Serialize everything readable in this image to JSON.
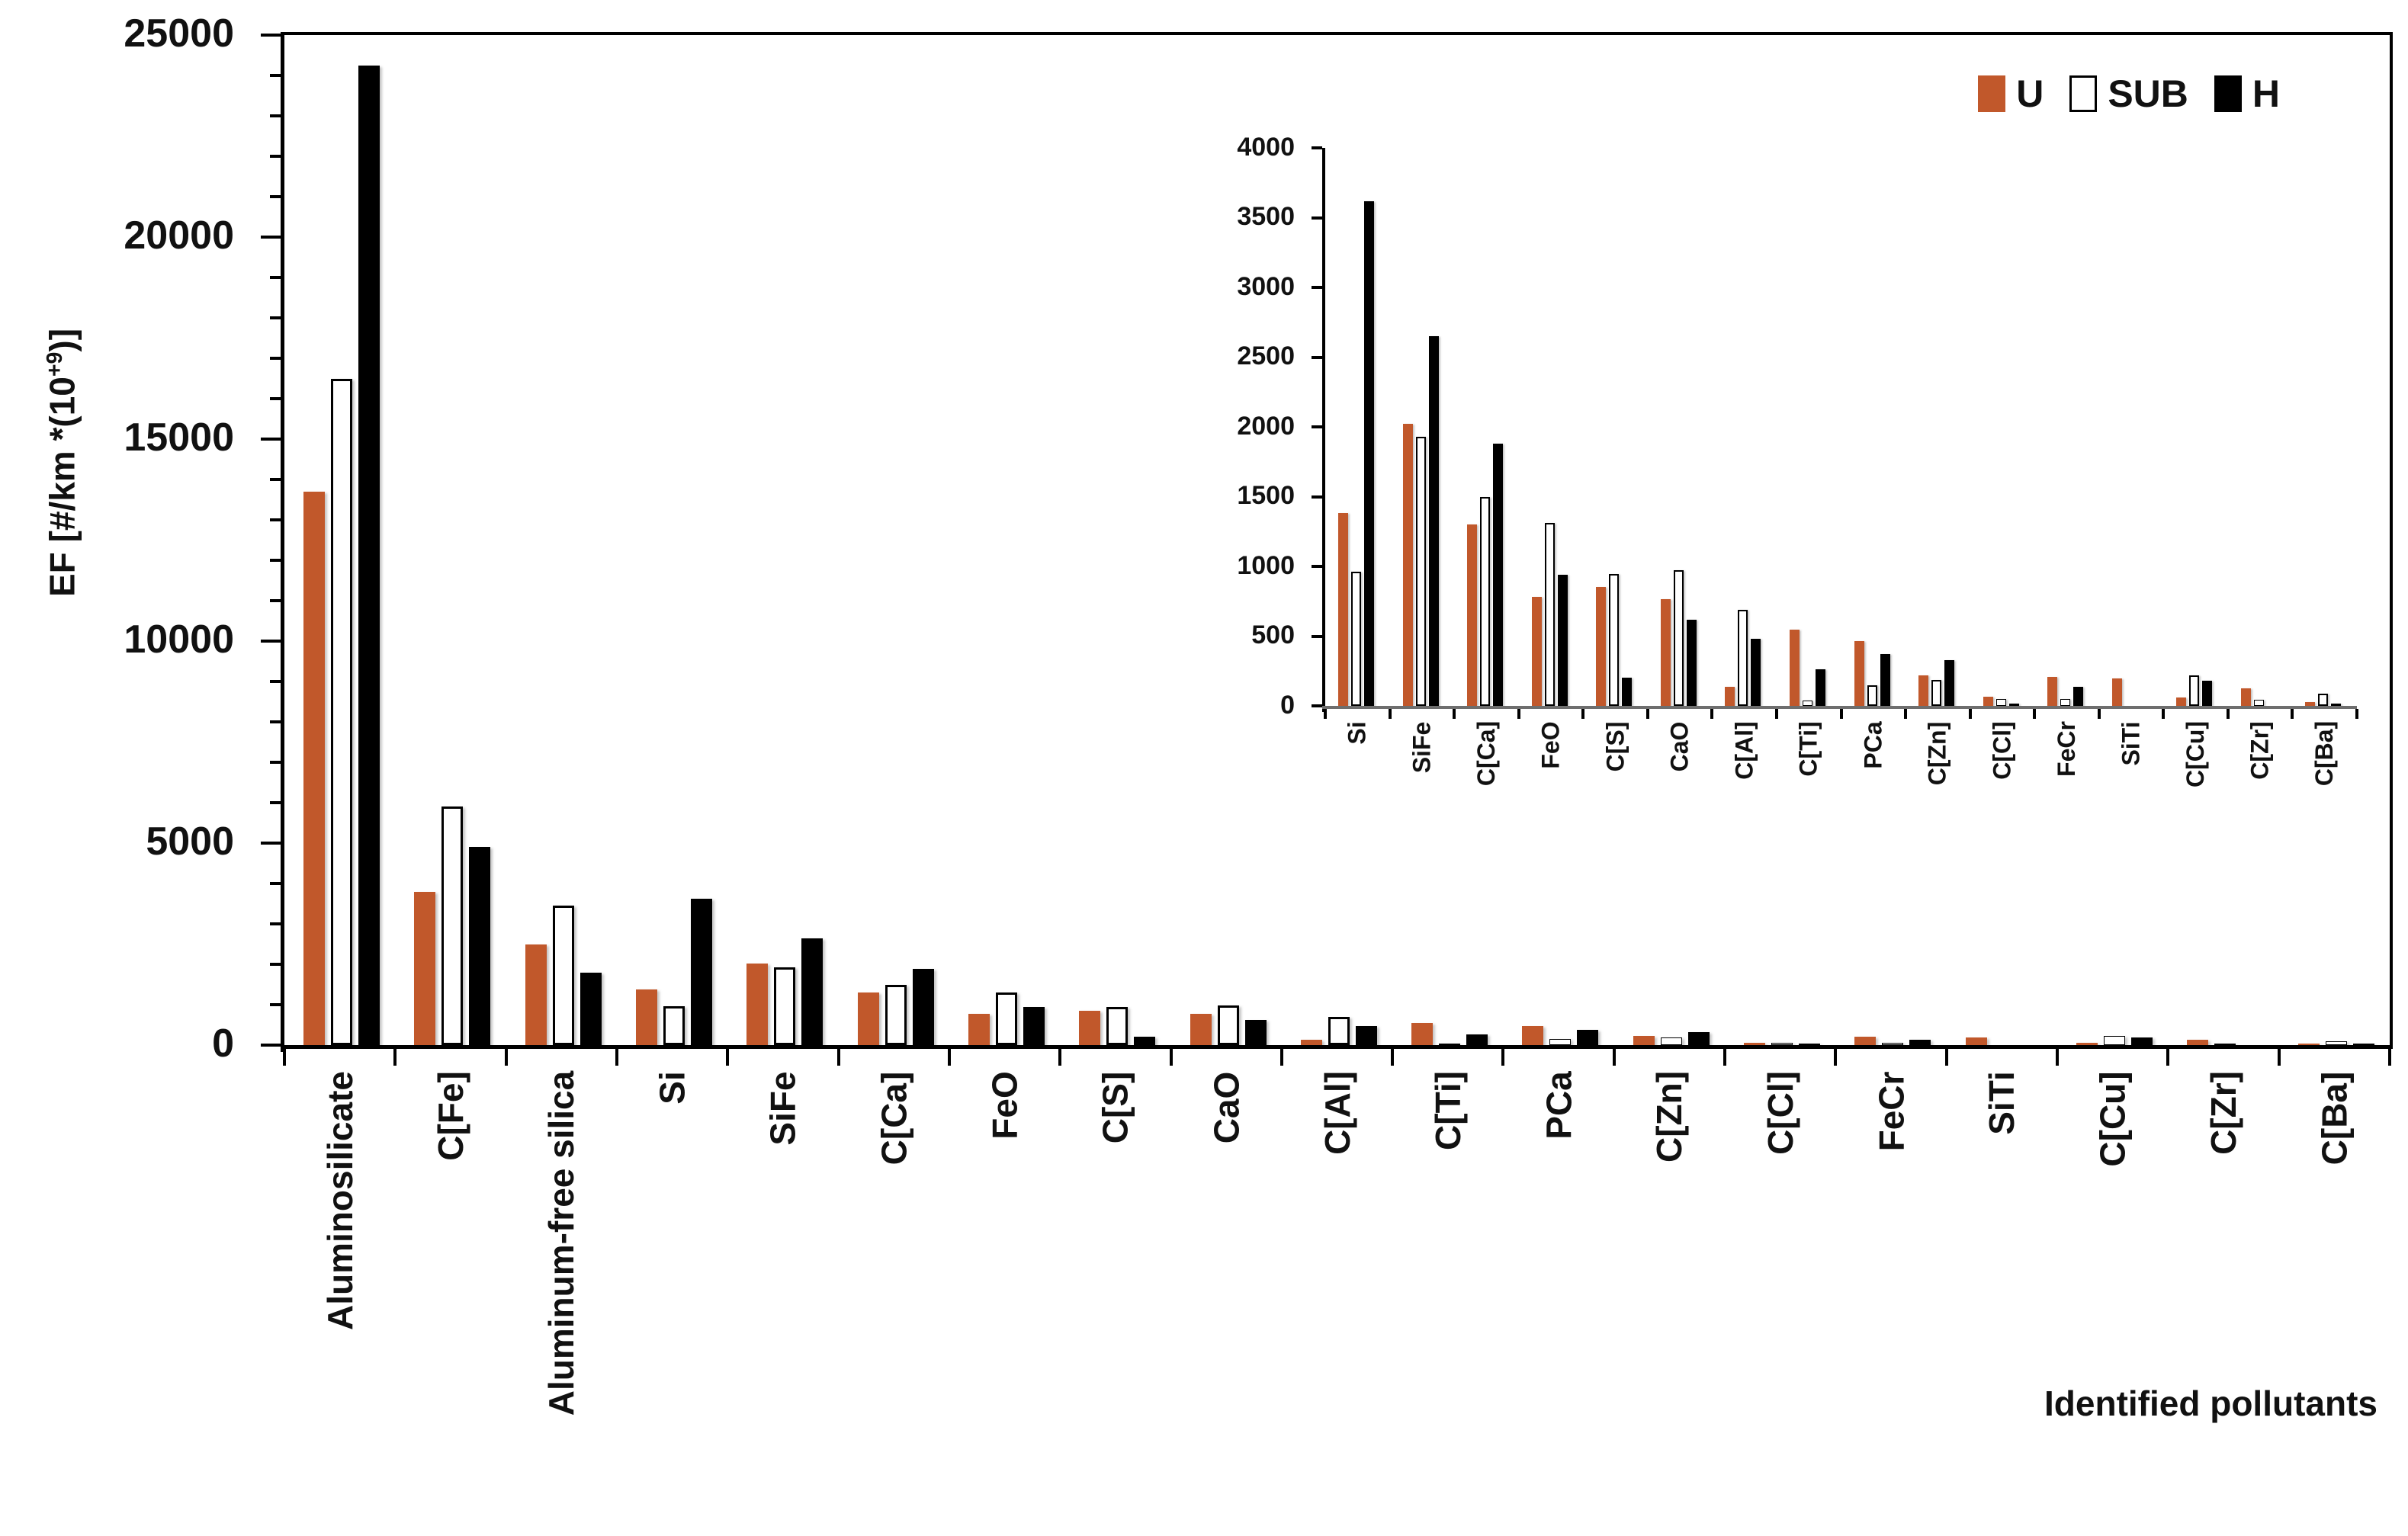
{
  "figure": {
    "x_axis_title": "Identified pollutants",
    "y_axis_title_parts": {
      "prefix": "EF [#/km *(10",
      "sup": "+9",
      "suffix": ")]"
    }
  },
  "legend": {
    "position": "top-right",
    "items": [
      {
        "label": "U",
        "swatch": "orange-filled-square"
      },
      {
        "label": "SUB",
        "swatch": "white-outlined-square"
      },
      {
        "label": "H",
        "swatch": "black-filled-square"
      }
    ]
  },
  "colors": {
    "series_u_orange": "#C1582B",
    "series_sub_white": "#FFFFFF",
    "series_h_black": "#000000",
    "inset_baseline_gray": "#6E6E6E",
    "axis_black": "#000000"
  },
  "chart_data": [
    {
      "id": "main",
      "type": "bar",
      "title": "",
      "xlabel": "Identified pollutants",
      "ylabel": "EF [#/km *(10+9)]",
      "ylabel_parts": {
        "prefix": "EF [#/km *(10",
        "sup": "+9",
        "suffix": ")]"
      },
      "ylim": [
        0,
        25000
      ],
      "ytick_step": 5000,
      "yminor_step": 1000,
      "yticks": [
        0,
        5000,
        10000,
        15000,
        20000,
        25000
      ],
      "grid": false,
      "legend_position": "top-right",
      "categories": [
        "Aluminosilicate",
        "C[Fe]",
        "Aluminum-free silica",
        "Si",
        "SiFe",
        "C[Ca]",
        "FeO",
        "C[S]",
        "CaO",
        "C[Al]",
        "C[Ti]",
        "PCa",
        "C[Zn]",
        "C[Cl]",
        "FeCr",
        "SiTi",
        "C[Cu]",
        "C[Zr]",
        "C[Ba]"
      ],
      "series": [
        {
          "name": "U",
          "color": "#C1582B",
          "outlined": false,
          "values": [
            13700,
            3800,
            2500,
            1380,
            2020,
            1300,
            780,
            855,
            765,
            135,
            545,
            465,
            220,
            65,
            210,
            195,
            60,
            125,
            30
          ]
        },
        {
          "name": "SUB",
          "color": "#FFFFFF",
          "outlined": true,
          "values": [
            16500,
            5900,
            3450,
            960,
            1930,
            1500,
            1310,
            945,
            975,
            690,
            40,
            150,
            185,
            50,
            50,
            0,
            220,
            45,
            90
          ]
        },
        {
          "name": "H",
          "color": "#000000",
          "outlined": false,
          "values": [
            24250,
            4900,
            1800,
            3620,
            2650,
            1880,
            940,
            200,
            615,
            480,
            265,
            370,
            330,
            15,
            135,
            0,
            180,
            0,
            15
          ]
        }
      ]
    },
    {
      "id": "inset",
      "type": "bar",
      "title": "",
      "xlabel": "",
      "ylabel": "",
      "ylim": [
        0,
        4000
      ],
      "ytick_step": 500,
      "yticks": [
        0,
        500,
        1000,
        1500,
        2000,
        2500,
        3000,
        3500,
        4000
      ],
      "grid": false,
      "categories": [
        "Si",
        "SiFe",
        "C[Ca]",
        "FeO",
        "C[S]",
        "CaO",
        "C[Al]",
        "C[Ti]",
        "PCa",
        "C[Zn]",
        "C[Cl]",
        "FeCr",
        "SiTi",
        "C[Cu]",
        "C[Zr]",
        "C[Ba]"
      ],
      "series": [
        {
          "name": "U",
          "color": "#C1582B",
          "outlined": false,
          "values": [
            1380,
            2020,
            1300,
            780,
            855,
            765,
            135,
            545,
            465,
            220,
            65,
            210,
            195,
            60,
            125,
            30
          ]
        },
        {
          "name": "SUB",
          "color": "#FFFFFF",
          "outlined": true,
          "values": [
            960,
            1930,
            1500,
            1310,
            945,
            975,
            690,
            40,
            150,
            185,
            50,
            50,
            0,
            220,
            45,
            90
          ]
        },
        {
          "name": "H",
          "color": "#000000",
          "outlined": false,
          "values": [
            3620,
            2650,
            1880,
            940,
            200,
            615,
            480,
            265,
            370,
            330,
            15,
            135,
            0,
            180,
            0,
            15
          ]
        }
      ]
    }
  ]
}
